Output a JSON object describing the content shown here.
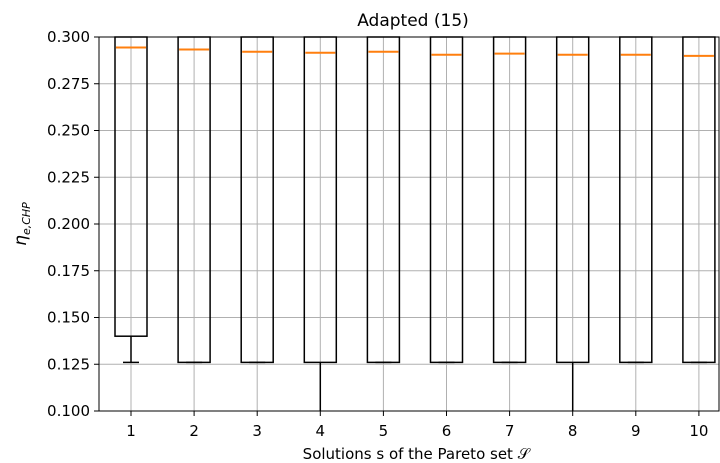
{
  "chart_data": {
    "type": "box",
    "title": "Adapted (15)",
    "xlabel": "Solutions s of the Pareto set 𝒮",
    "ylabel": "η",
    "ylabel_sub": "e,CHP",
    "categories": [
      "1",
      "2",
      "3",
      "4",
      "5",
      "6",
      "7",
      "8",
      "9",
      "10"
    ],
    "ylim": [
      0.1,
      0.3
    ],
    "yticks": [
      "0.100",
      "0.125",
      "0.150",
      "0.175",
      "0.200",
      "0.225",
      "0.250",
      "0.275",
      "0.300"
    ],
    "grid": true,
    "colors": {
      "box": "#000000",
      "median": "#ff7f0e",
      "grid": "#b0b0b0"
    },
    "boxes": [
      {
        "q1": 0.14,
        "median": 0.2944,
        "whisker_low": 0.126
      },
      {
        "q1": 0.126,
        "median": 0.2933,
        "whisker_low": 0.126
      },
      {
        "q1": 0.126,
        "median": 0.2921,
        "whisker_low": 0.126
      },
      {
        "q1": 0.126,
        "median": 0.2916,
        "whisker_low": 0.1
      },
      {
        "q1": 0.126,
        "median": 0.2921,
        "whisker_low": 0.126
      },
      {
        "q1": 0.126,
        "median": 0.2905,
        "whisker_low": 0.126
      },
      {
        "q1": 0.126,
        "median": 0.2911,
        "whisker_low": 0.126
      },
      {
        "q1": 0.126,
        "median": 0.2905,
        "whisker_low": 0.1
      },
      {
        "q1": 0.126,
        "median": 0.2905,
        "whisker_low": 0.126
      },
      {
        "q1": 0.126,
        "median": 0.2899,
        "whisker_low": 0.126
      }
    ]
  }
}
